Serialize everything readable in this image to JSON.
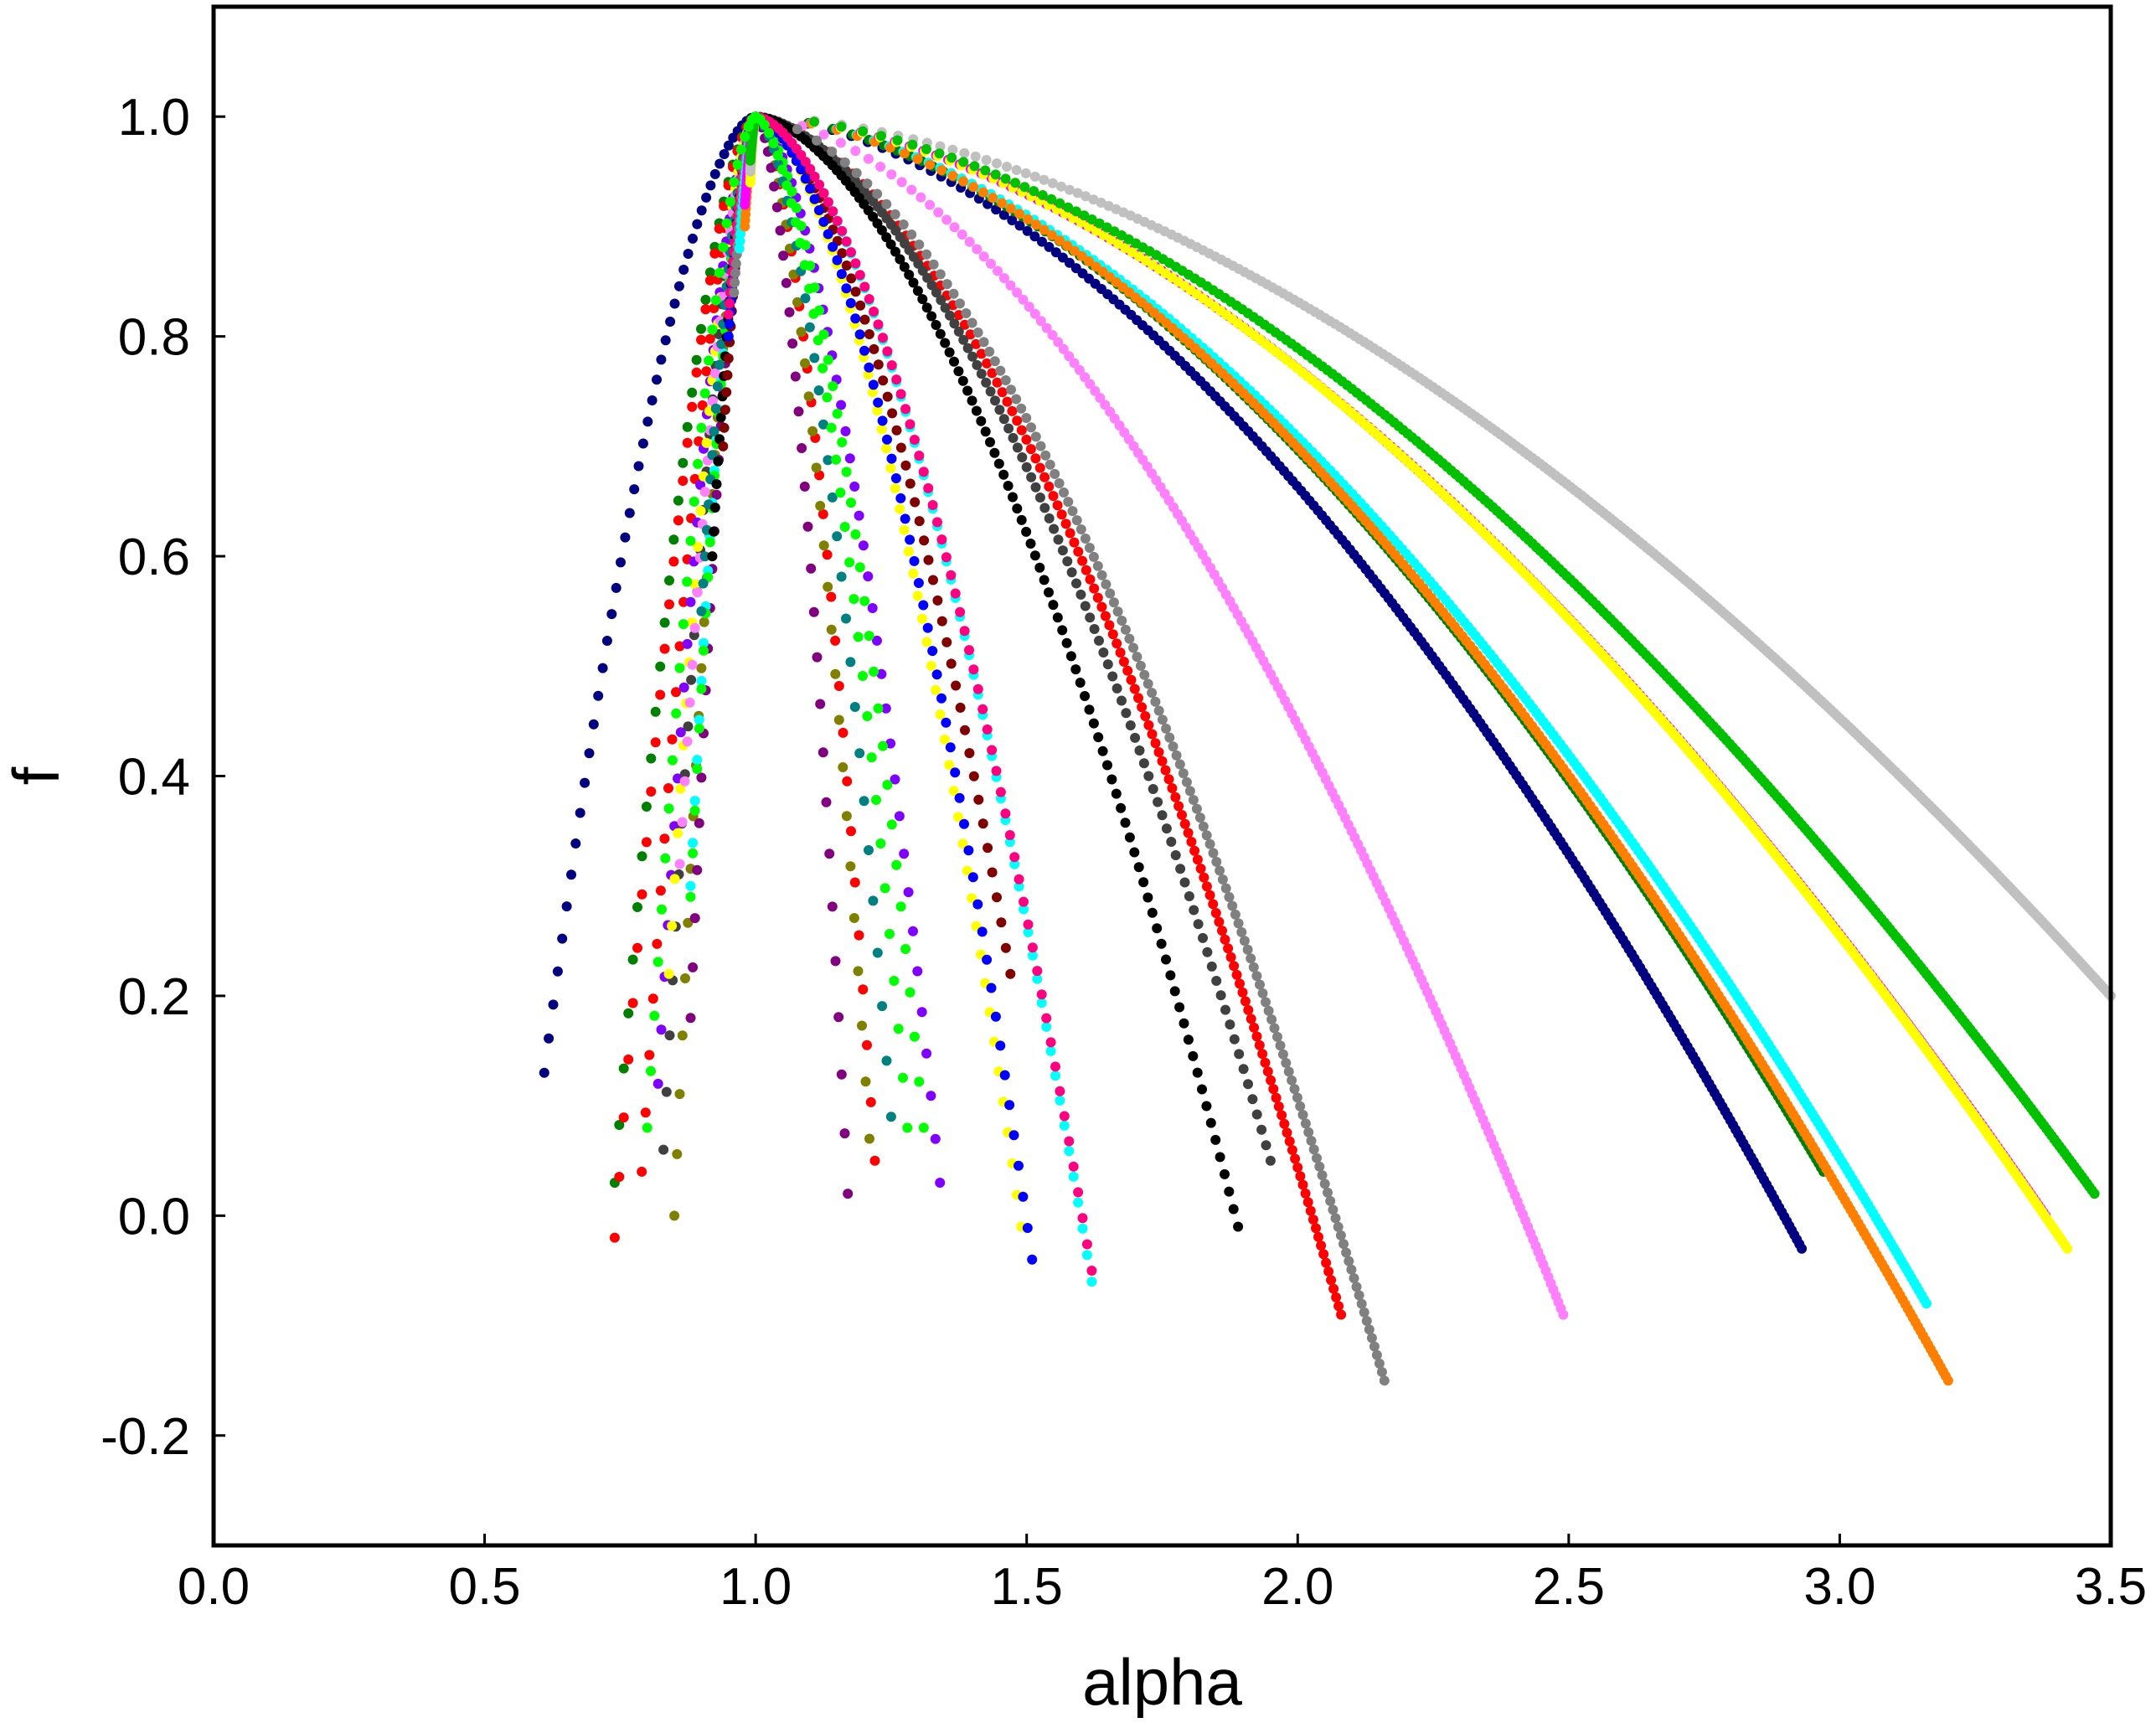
{
  "chart_data": {
    "type": "scatter",
    "title": "",
    "xlabel": "alpha",
    "ylabel": "f",
    "xlim": [
      0.0,
      3.5
    ],
    "ylim": [
      -0.3,
      1.1
    ],
    "x_ticks": [
      "0.0",
      "0.5",
      "1.0",
      "1.5",
      "2.0",
      "2.5",
      "3.0",
      "3.5"
    ],
    "x_tick_values": [
      0.0,
      0.5,
      1.0,
      1.5,
      2.0,
      2.5,
      3.0,
      3.5
    ],
    "y_ticks": [
      "-0.2",
      "0.0",
      "0.2",
      "0.4",
      "0.6",
      "0.8",
      "1.0"
    ],
    "y_tick_values": [
      -0.2,
      0.0,
      0.2,
      0.4,
      0.6,
      0.8,
      1.0
    ],
    "grid": false,
    "legend": "none",
    "peak_alpha": 1.0,
    "series": [
      {
        "color": "#000080",
        "left": {
          "x": 0.61,
          "y": 0.13
        },
        "right": {
          "x": 2.93,
          "y": -0.03
        }
      },
      {
        "color": "#008000",
        "left": {
          "x": 0.74,
          "y": 0.03
        },
        "right": {
          "x": 2.97,
          "y": 0.04
        }
      },
      {
        "color": "#ff0000",
        "left": {
          "x": 0.74,
          "y": -0.02
        },
        "right": {
          "x": 2.08,
          "y": -0.09
        }
      },
      {
        "color": "#ff0000",
        "left": {
          "x": 0.79,
          "y": 0.04
        },
        "right": {
          "x": 1.22,
          "y": 0.05
        }
      },
      {
        "color": "#8000ff",
        "left": {
          "x": 0.82,
          "y": 0.12
        },
        "right": {
          "x": 1.34,
          "y": 0.03
        }
      },
      {
        "color": "#404040",
        "left": {
          "x": 0.83,
          "y": 0.06
        },
        "right": {
          "x": 1.95,
          "y": 0.05
        }
      },
      {
        "color": "#808000",
        "left": {
          "x": 0.85,
          "y": 0.0
        },
        "right": {
          "x": 1.21,
          "y": 0.07
        }
      },
      {
        "color": "#ffff00",
        "left": {
          "x": 0.84,
          "y": 0.22
        },
        "right": {
          "x": 1.49,
          "y": -0.01
        }
      },
      {
        "color": "#800080",
        "left": {
          "x": 0.88,
          "y": 0.18
        },
        "right": {
          "x": 1.17,
          "y": 0.02
        }
      },
      {
        "color": "#00ffff",
        "left": {
          "x": 0.88,
          "y": 0.3
        },
        "right": {
          "x": 1.62,
          "y": -0.06
        }
      },
      {
        "color": "#ff80ff",
        "left": {
          "x": 0.86,
          "y": 0.32
        },
        "right": {
          "x": 2.49,
          "y": -0.09
        }
      },
      {
        "color": "#00ff00",
        "left": {
          "x": 0.88,
          "y": 0.29
        },
        "right": {
          "x": 1.31,
          "y": 0.08
        }
      },
      {
        "color": "#008080",
        "left": {
          "x": 0.9,
          "y": 0.55
        },
        "right": {
          "x": 1.25,
          "y": 0.09
        }
      },
      {
        "color": "#000000",
        "left": {
          "x": 0.92,
          "y": 0.6
        },
        "right": {
          "x": 1.89,
          "y": -0.01
        }
      },
      {
        "color": "#800000",
        "left": {
          "x": 0.94,
          "y": 0.7
        },
        "right": {
          "x": 1.47,
          "y": 0.22
        }
      },
      {
        "color": "#0000ff",
        "left": {
          "x": 0.95,
          "y": 0.8
        },
        "right": {
          "x": 1.51,
          "y": -0.04
        }
      },
      {
        "color": "#ff0080",
        "left": {
          "x": 0.95,
          "y": 0.82
        },
        "right": {
          "x": 1.62,
          "y": -0.05
        }
      },
      {
        "color": "#808080",
        "left": {
          "x": 0.96,
          "y": 0.84
        },
        "right": {
          "x": 2.16,
          "y": -0.15
        }
      },
      {
        "color": "#00ffff",
        "left": {
          "x": 0.97,
          "y": 0.88
        },
        "right": {
          "x": 3.16,
          "y": -0.08
        }
      },
      {
        "color": "#ff8000",
        "left": {
          "x": 0.98,
          "y": 0.9
        },
        "right": {
          "x": 3.2,
          "y": -0.15
        }
      },
      {
        "color": "#ff00ff",
        "left": {
          "x": 0.98,
          "y": 0.92
        },
        "right": {
          "x": 3.38,
          "y": 0.0
        }
      },
      {
        "color": "#ffff00",
        "left": {
          "x": 0.99,
          "y": 0.94
        },
        "right": {
          "x": 3.42,
          "y": -0.03
        }
      },
      {
        "color": "#c0c0c0",
        "left": {
          "x": 0.99,
          "y": 0.95
        },
        "right": {
          "x": 3.5,
          "y": 0.2
        }
      },
      {
        "color": "#00c000",
        "left": {
          "x": 0.99,
          "y": 0.96
        },
        "right": {
          "x": 3.47,
          "y": 0.02
        }
      },
      {
        "color": "#00ff00",
        "left": {
          "x": 0.8,
          "y": 0.08
        },
        "right": {
          "x": 1.28,
          "y": 0.08
        }
      }
    ]
  }
}
